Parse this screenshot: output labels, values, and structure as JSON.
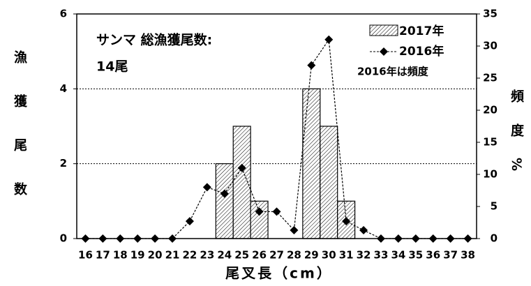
{
  "chart_data": {
    "type": "bar",
    "annotations": [
      "サンマ  総漁獲尾数:",
      "14尾",
      "2016年は頻度"
    ],
    "y_label": "漁獲尾数",
    "y2_label": "頻度%",
    "x_label": "尾叉長（cm）",
    "categories": [
      "16",
      "17",
      "18",
      "19",
      "20",
      "21",
      "22",
      "23",
      "24",
      "25",
      "26",
      "27",
      "28",
      "29",
      "30",
      "31",
      "32",
      "33",
      "34",
      "35",
      "36",
      "37",
      "38"
    ],
    "series": [
      {
        "name": "2017年",
        "type": "bar",
        "color": "#000000",
        "values": [
          0,
          0,
          0,
          0,
          0,
          0,
          0,
          0,
          2,
          3,
          1,
          0,
          0,
          4,
          3,
          1,
          0,
          0,
          0,
          0,
          0,
          0,
          0
        ]
      },
      {
        "name": "2016年",
        "type": "line",
        "axis": "y2",
        "color": "#000000",
        "values": [
          0,
          0,
          0,
          0,
          0,
          0,
          2.7,
          8,
          7,
          11,
          4.2,
          4.2,
          1.3,
          27,
          31,
          2.7,
          1.3,
          0,
          0,
          0,
          0,
          0,
          0
        ]
      }
    ],
    "ylim": [
      0,
      6
    ],
    "yticks": [
      0,
      2,
      4,
      6
    ],
    "y2lim": [
      0,
      35
    ],
    "y2ticks": [
      0,
      5,
      10,
      15,
      20,
      25,
      30,
      35
    ],
    "grid": true
  }
}
